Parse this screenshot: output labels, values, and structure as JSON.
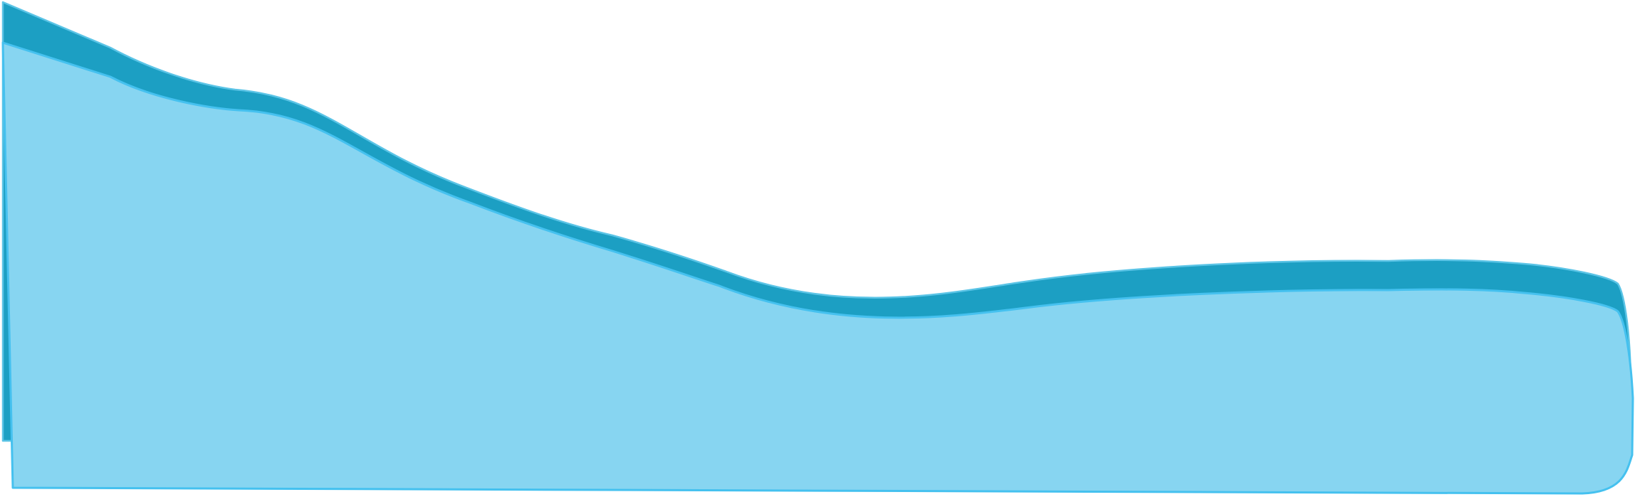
{
  "shapes": {
    "back_band": {
      "name": "dark-water-band",
      "fill": "#1c9fc3",
      "stroke": "#5bc4e6"
    },
    "front_area": {
      "name": "light-water-area",
      "fill": "#87d5f1",
      "stroke": "#45c1ef"
    }
  }
}
